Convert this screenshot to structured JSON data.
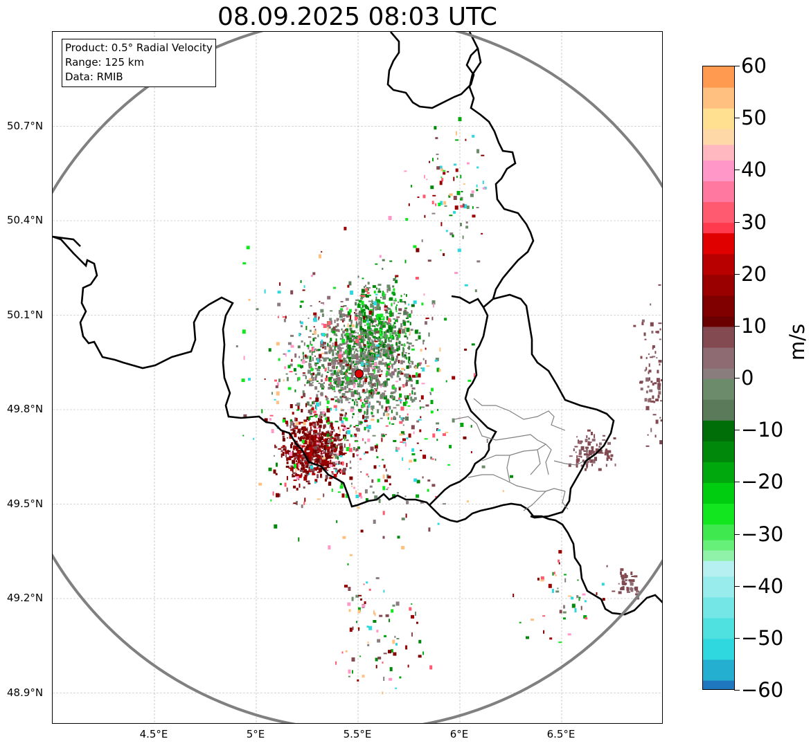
{
  "title": "08.09.2025 08:03 UTC",
  "info": {
    "product": "Product: 0.5° Radial Velocity",
    "range": "Range: 125 km",
    "source": "Data: RMIB"
  },
  "map": {
    "lon_range": [
      4.0,
      7.0
    ],
    "lat_range": [
      48.8,
      51.0
    ],
    "radar_site": {
      "lon": 5.505,
      "lat": 49.914
    },
    "range_ring_color": "#808080",
    "border_color": "#000000",
    "region_border_color": "#808080",
    "grid": true,
    "lat_ticks": [
      {
        "value": 50.7,
        "label": "50.7°N"
      },
      {
        "value": 50.4,
        "label": "50.4°N"
      },
      {
        "value": 50.1,
        "label": "50.1°N"
      },
      {
        "value": 49.8,
        "label": "49.8°N"
      },
      {
        "value": 49.5,
        "label": "49.5°N"
      },
      {
        "value": 49.2,
        "label": "49.2°N"
      },
      {
        "value": 48.9,
        "label": "48.9°N"
      }
    ],
    "lon_ticks": [
      {
        "value": 4.5,
        "label": "4.5°E"
      },
      {
        "value": 5.0,
        "label": "5°E"
      },
      {
        "value": 5.5,
        "label": "5.5°E"
      },
      {
        "value": 6.0,
        "label": "6°E"
      },
      {
        "value": 6.5,
        "label": "6.5°E"
      }
    ],
    "echo_clusters": [
      {
        "lon": 5.5,
        "lat": 49.95,
        "spread_lon": 0.28,
        "spread_lat": 0.17,
        "count": 900,
        "palette": "ground"
      },
      {
        "lon": 5.28,
        "lat": 49.68,
        "spread_lon": 0.15,
        "spread_lat": 0.1,
        "count": 600,
        "palette": "dark-red"
      },
      {
        "lon": 5.6,
        "lat": 50.08,
        "spread_lon": 0.18,
        "spread_lat": 0.13,
        "count": 300,
        "palette": "green"
      },
      {
        "lon": 5.5,
        "lat": 49.85,
        "spread_lon": 0.5,
        "spread_lat": 0.42,
        "count": 650,
        "palette": "mixed"
      },
      {
        "lon": 6.65,
        "lat": 49.67,
        "spread_lon": 0.1,
        "spread_lat": 0.06,
        "count": 90,
        "palette": "maroon"
      },
      {
        "lon": 6.95,
        "lat": 49.9,
        "spread_lon": 0.08,
        "spread_lat": 0.2,
        "count": 90,
        "palette": "maroon"
      },
      {
        "lon": 6.82,
        "lat": 49.25,
        "spread_lon": 0.06,
        "spread_lat": 0.04,
        "count": 40,
        "palette": "maroon"
      },
      {
        "lon": 5.6,
        "lat": 49.1,
        "spread_lon": 0.25,
        "spread_lat": 0.2,
        "count": 80,
        "palette": "mixed"
      },
      {
        "lon": 5.95,
        "lat": 50.5,
        "spread_lon": 0.2,
        "spread_lat": 0.2,
        "count": 90,
        "palette": "mixed"
      },
      {
        "lon": 6.5,
        "lat": 49.2,
        "spread_lon": 0.18,
        "spread_lat": 0.15,
        "count": 45,
        "palette": "mixed"
      }
    ]
  },
  "colorbar": {
    "label": "m/s",
    "min": -60,
    "max": 60,
    "ticks": [
      {
        "value": 60,
        "label": "60"
      },
      {
        "value": 50,
        "label": "50"
      },
      {
        "value": 40,
        "label": "40"
      },
      {
        "value": 30,
        "label": "30"
      },
      {
        "value": 20,
        "label": "20"
      },
      {
        "value": 10,
        "label": "10"
      },
      {
        "value": 0,
        "label": "0"
      },
      {
        "value": -10,
        "label": "−10"
      },
      {
        "value": -20,
        "label": "−20"
      },
      {
        "value": -30,
        "label": "−30"
      },
      {
        "value": -40,
        "label": "−40"
      },
      {
        "value": -50,
        "label": "−50"
      },
      {
        "value": -60,
        "label": "−60"
      }
    ],
    "bands": [
      {
        "from": -60,
        "to": -58,
        "color": "#1f77c0"
      },
      {
        "from": -58,
        "to": -54,
        "color": "#24aed0"
      },
      {
        "from": -54,
        "to": -50,
        "color": "#2ed8de"
      },
      {
        "from": -50,
        "to": -46,
        "color": "#4fe0e0"
      },
      {
        "from": -46,
        "to": -42,
        "color": "#75e6e6"
      },
      {
        "from": -42,
        "to": -38,
        "color": "#99ecec"
      },
      {
        "from": -38,
        "to": -35,
        "color": "#b7f0f0"
      },
      {
        "from": -35,
        "to": -33,
        "color": "#8ff2a8"
      },
      {
        "from": -33,
        "to": -31,
        "color": "#66f07a"
      },
      {
        "from": -31,
        "to": -28,
        "color": "#3ee84e"
      },
      {
        "from": -28,
        "to": -24,
        "color": "#12e61e"
      },
      {
        "from": -24,
        "to": -20,
        "color": "#00cc10"
      },
      {
        "from": -20,
        "to": -16,
        "color": "#00a80e"
      },
      {
        "from": -16,
        "to": -12,
        "color": "#00880a"
      },
      {
        "from": -12,
        "to": -8,
        "color": "#006e08"
      },
      {
        "from": -8,
        "to": -4,
        "color": "#5a7a5a"
      },
      {
        "from": -4,
        "to": 0,
        "color": "#6b8b6b"
      },
      {
        "from": 0,
        "to": 2,
        "color": "#8a7d7d"
      },
      {
        "from": 2,
        "to": 6,
        "color": "#8e6a72"
      },
      {
        "from": 6,
        "to": 10,
        "color": "#844a52"
      },
      {
        "from": 10,
        "to": 12,
        "color": "#6a0000"
      },
      {
        "from": 12,
        "to": 16,
        "color": "#800000"
      },
      {
        "from": 16,
        "to": 20,
        "color": "#9a0000"
      },
      {
        "from": 20,
        "to": 24,
        "color": "#b80000"
      },
      {
        "from": 24,
        "to": 28,
        "color": "#e00000"
      },
      {
        "from": 28,
        "to": 30,
        "color": "#ff3a4e"
      },
      {
        "from": 30,
        "to": 34,
        "color": "#ff5a70"
      },
      {
        "from": 34,
        "to": 38,
        "color": "#ff78a0"
      },
      {
        "from": 38,
        "to": 42,
        "color": "#ff98c8"
      },
      {
        "from": 42,
        "to": 45,
        "color": "#ffb8c0"
      },
      {
        "from": 45,
        "to": 48,
        "color": "#ffd8a8"
      },
      {
        "from": 48,
        "to": 52,
        "color": "#ffe090"
      },
      {
        "from": 52,
        "to": 56,
        "color": "#ffc080"
      },
      {
        "from": 56,
        "to": 60,
        "color": "#ff9a50"
      }
    ]
  }
}
